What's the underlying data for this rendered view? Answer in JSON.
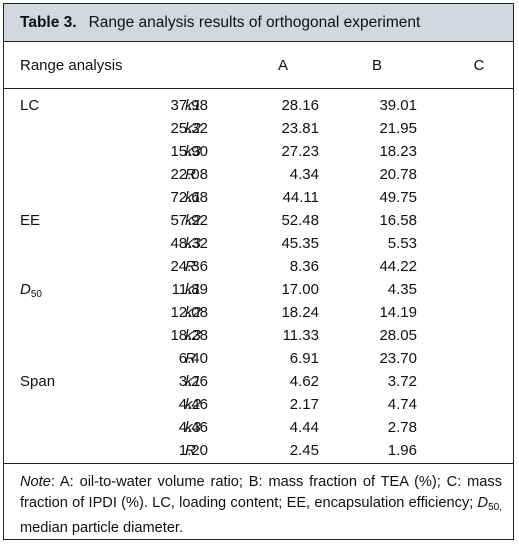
{
  "table": {
    "number": "Table 3.",
    "title": "Range analysis results of orthogonal experiment",
    "columns": {
      "label": "Range analysis",
      "a": "A",
      "b": "B",
      "c": "C"
    },
    "groups": [
      {
        "name": "LC",
        "rows": [
          {
            "k": "k1",
            "a": "37.98",
            "b": "28.16",
            "c": "39.01"
          },
          {
            "k": "k2",
            "a": "25.32",
            "b": "23.81",
            "c": "21.95"
          },
          {
            "k": "k3",
            "a": "15.90",
            "b": "27.23",
            "c": "18.23"
          },
          {
            "k": "R",
            "a": "22.08",
            "b": "4.34",
            "c": "20.78"
          }
        ]
      },
      {
        "name": "EE",
        "rows": [
          {
            "k": "k1",
            "a": "72.68",
            "b": "44.11",
            "c": "49.75"
          },
          {
            "k": "k2",
            "a": "57.92",
            "b": "52.48",
            "c": "16.58"
          },
          {
            "k": "k3",
            "a": "48.32",
            "b": "45.35",
            "c": "5.53"
          },
          {
            "k": "R",
            "a": "24.36",
            "b": "8.36",
            "c": "44.22"
          }
        ]
      },
      {
        "name": "D",
        "name_sub": "50",
        "rows": [
          {
            "k": "k1",
            "a": "11.89",
            "b": "17.00",
            "c": "4.35"
          },
          {
            "k": "k2",
            "a": "12.08",
            "b": "18.24",
            "c": "14.19"
          },
          {
            "k": "k3",
            "a": "18.28",
            "b": "11.33",
            "c": "28.05"
          },
          {
            "k": "R",
            "a": "6.40",
            "b": "6.91",
            "c": "23.70"
          }
        ]
      },
      {
        "name": "Span",
        "rows": [
          {
            "k": "k1",
            "a": "3.26",
            "b": "4.62",
            "c": "3.72"
          },
          {
            "k": "k2",
            "a": "4.46",
            "b": "2.17",
            "c": "4.74"
          },
          {
            "k": "k3",
            "a": "4.46",
            "b": "4.44",
            "c": "2.78"
          },
          {
            "k": "R",
            "a": "1.20",
            "b": "2.45",
            "c": "1.96"
          }
        ]
      }
    ],
    "note": {
      "label": "Note",
      "text1": ": A: oil-to-water volume ratio; B: mass fraction of TEA (%); C: mass fraction of IPDI (%). LC, loading content; EE, encapsulation efficiency; ",
      "d": "D",
      "d_sub": "50,",
      "text2": " median particle diameter."
    }
  }
}
